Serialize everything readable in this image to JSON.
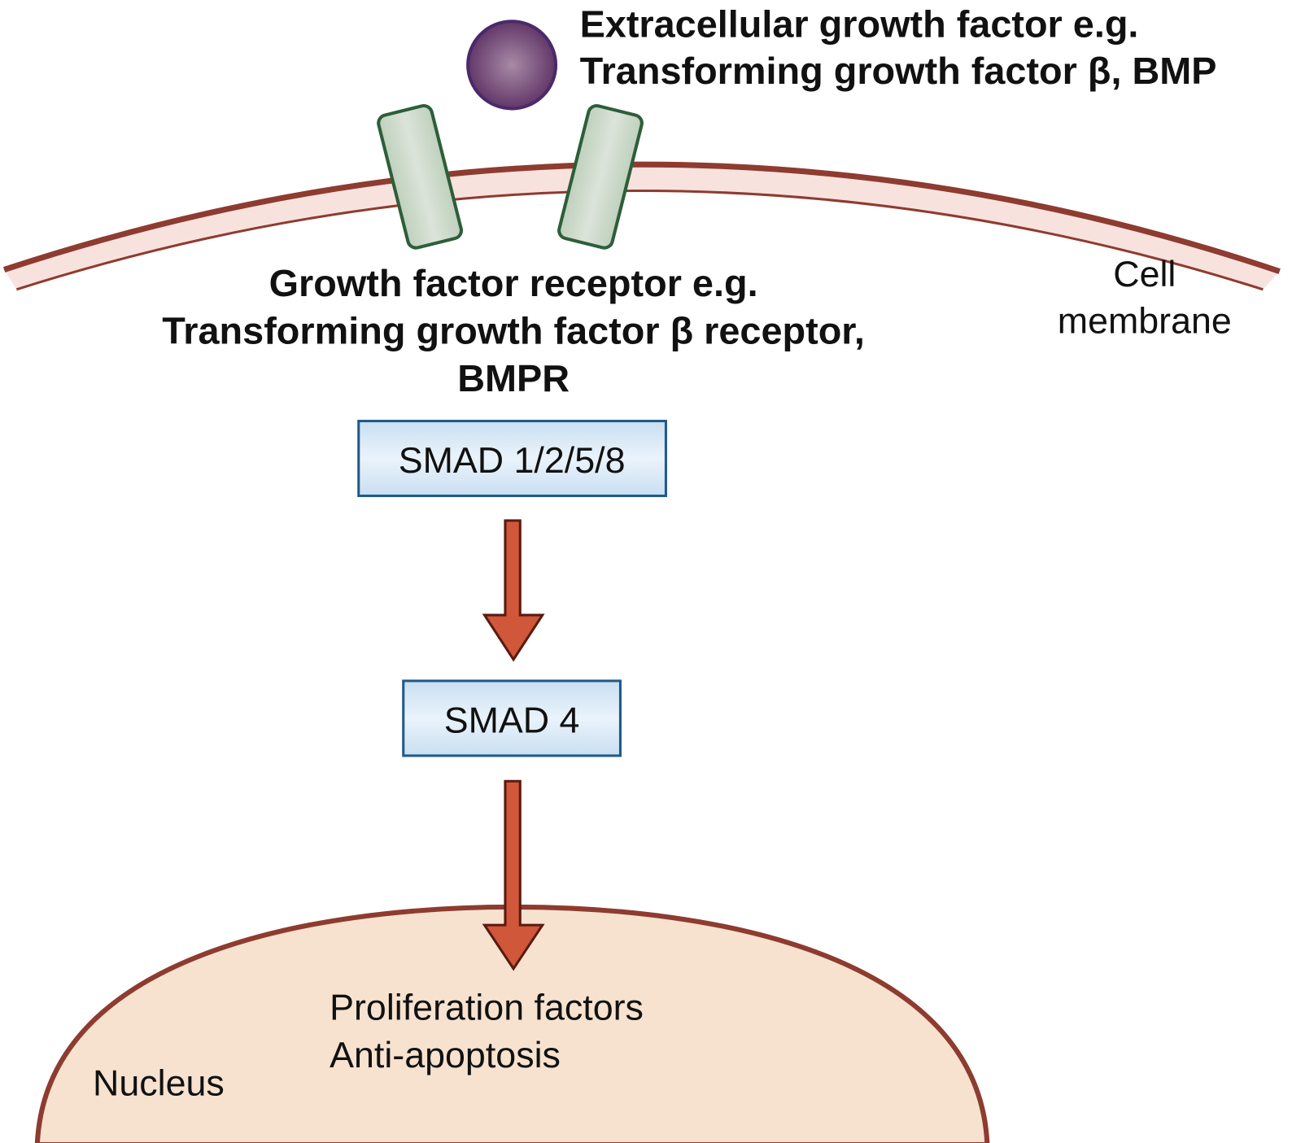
{
  "ligand": {
    "lines": [
      "Extracellular growth factor e.g.",
      "Transforming growth factor β, BMP"
    ]
  },
  "receptor": {
    "lines": [
      "Growth factor receptor e.g.",
      "Transforming growth factor β receptor,",
      "BMPR"
    ]
  },
  "membrane": {
    "lines": [
      "Cell",
      "membrane"
    ]
  },
  "nodes": [
    {
      "label": "SMAD 1/2/5/8"
    },
    {
      "label": "SMAD 4"
    }
  ],
  "nucleus": {
    "label": "Nucleus",
    "outputs": [
      "Proliferation factors",
      "Anti-apoptosis"
    ]
  }
}
